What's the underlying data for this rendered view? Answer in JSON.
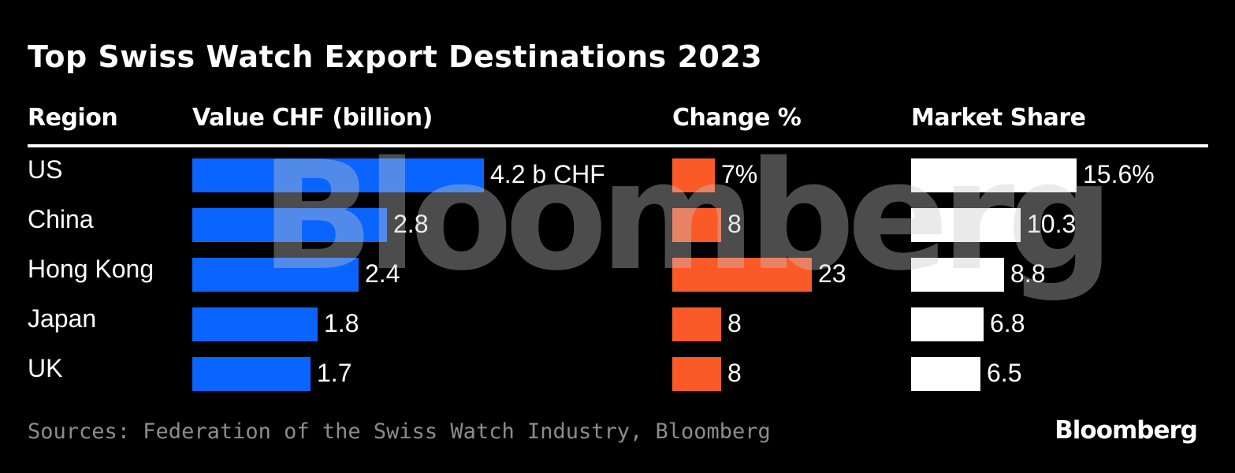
{
  "colors": {
    "background": "#000000",
    "value_bar": "#0a64ff",
    "change_bar": "#fa5a28",
    "share_bar": "#ffffff",
    "watermark": "rgba(200,200,200,0.38)"
  },
  "chart_data": {
    "type": "table",
    "title": "Top Swiss Watch Export Destinations 2023",
    "columns": [
      "Region",
      "Value CHF (billion)",
      "Change %",
      "Market Share"
    ],
    "rows": [
      {
        "region": "US",
        "value": 4.2,
        "value_label": "4.2 b CHF",
        "change": 7,
        "change_label": "7%",
        "share": 15.6,
        "share_label": "15.6%"
      },
      {
        "region": "China",
        "value": 2.8,
        "value_label": "2.8",
        "change": 8,
        "change_label": "8",
        "share": 10.3,
        "share_label": "10.3"
      },
      {
        "region": "Hong Kong",
        "value": 2.4,
        "value_label": "2.4",
        "change": 23,
        "change_label": "23",
        "share": 8.8,
        "share_label": "8.8"
      },
      {
        "region": "Japan",
        "value": 1.8,
        "value_label": "1.8",
        "change": 8,
        "change_label": "8",
        "share": 6.8,
        "share_label": "6.8"
      },
      {
        "region": "UK",
        "value": 1.7,
        "value_label": "1.7",
        "change": 8,
        "change_label": "8",
        "share": 6.5,
        "share_label": "6.5"
      }
    ],
    "source": "Sources: Federation of the Swiss Watch Industry, Bloomberg"
  },
  "watermark": "Bloomberg",
  "logo": "Bloomberg"
}
